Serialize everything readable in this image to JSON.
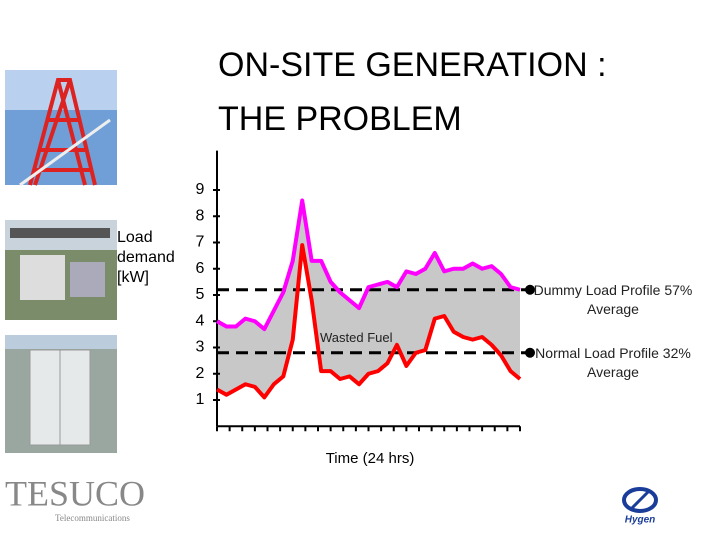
{
  "chart_data": {
    "type": "line",
    "title": "ON-SITE GENERATION : THE PROBLEM",
    "y_label": "Load demand [kW]",
    "x_label": "Time (24 hrs)",
    "annotation": "Wasted Fuel",
    "x": [
      0,
      0.75,
      1.5,
      2.25,
      3,
      3.75,
      4.5,
      5.25,
      6,
      6.75,
      7.5,
      8.25,
      9,
      9.75,
      10.5,
      11.25,
      12,
      12.75,
      13.5,
      14.25,
      15,
      15.75,
      16.5,
      17.25,
      18,
      18.75,
      19.5,
      20.25,
      21,
      21.75,
      22.5,
      23.25,
      24
    ],
    "series": [
      {
        "name": "Dummy Load",
        "color": "#ff00ff",
        "values": [
          4.0,
          3.8,
          3.8,
          4.1,
          4.0,
          3.7,
          4.4,
          5.1,
          6.3,
          8.6,
          6.3,
          6.3,
          5.5,
          5.1,
          4.8,
          4.5,
          5.3,
          5.4,
          5.5,
          5.3,
          5.9,
          5.8,
          6.0,
          6.6,
          5.9,
          6.0,
          6.0,
          6.2,
          6.0,
          6.1,
          5.8,
          5.3,
          5.2
        ]
      },
      {
        "name": "Normal Load",
        "color": "#ff0000",
        "values": [
          1.4,
          1.2,
          1.4,
          1.6,
          1.5,
          1.1,
          1.6,
          1.9,
          3.3,
          6.9,
          4.8,
          2.1,
          2.1,
          1.8,
          1.9,
          1.6,
          2.0,
          2.1,
          2.4,
          3.1,
          2.3,
          2.8,
          2.9,
          4.1,
          4.2,
          3.6,
          3.4,
          3.3,
          3.4,
          3.1,
          2.7,
          2.1,
          1.8
        ]
      }
    ],
    "reference_lines": [
      {
        "value": 5.2,
        "label": "Dummy Load Profile 57% Average"
      },
      {
        "value": 2.8,
        "label": "Normal Load Profile 32% Average"
      }
    ],
    "xlim": [
      0,
      24
    ],
    "xticks": [
      0,
      1,
      2,
      3,
      4,
      5,
      6,
      7,
      8,
      9,
      10,
      11,
      12,
      13,
      14,
      15,
      16,
      17,
      18,
      19,
      20,
      21,
      22,
      23,
      24
    ],
    "ylim": [
      0,
      10.5
    ],
    "yticks": [
      1,
      2,
      3,
      4,
      5,
      6,
      7,
      8,
      9
    ]
  },
  "logos": {
    "left": "TESUCO",
    "left_sub": "Telecommunications",
    "right": "Hygen"
  }
}
